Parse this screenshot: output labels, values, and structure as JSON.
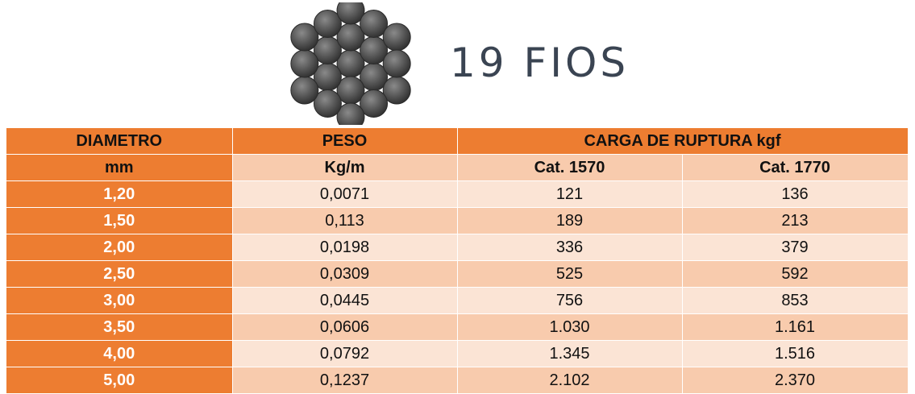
{
  "title": "19 FIOS",
  "icons": {
    "strand": "19-wire-strand-cross-section-icon"
  },
  "colors": {
    "accent": "#ed7d31",
    "row_dark": "#f8cbad",
    "row_light": "#fbe4d5",
    "title_text": "#3a4452",
    "wire": "#555555"
  },
  "table": {
    "header1": {
      "diametro": "DIAMETRO",
      "peso": "PESO",
      "carga": "CARGA DE RUPTURA  kgf"
    },
    "header2": {
      "mm": "mm",
      "kgm": "Kg/m",
      "cat1": "Cat. 1570",
      "cat2": "Cat. 1770"
    },
    "rows": [
      {
        "d": "1,20",
        "peso": "0,0071",
        "c1": "121",
        "c2": "136"
      },
      {
        "d": "1,50",
        "peso": "0,113",
        "c1": "189",
        "c2": "213"
      },
      {
        "d": "2,00",
        "peso": "0,0198",
        "c1": "336",
        "c2": "379"
      },
      {
        "d": "2,50",
        "peso": "0,0309",
        "c1": "525",
        "c2": "592"
      },
      {
        "d": "3,00",
        "peso": "0,0445",
        "c1": "756",
        "c2": "853"
      },
      {
        "d": "3,50",
        "peso": "0,0606",
        "c1": "1.030",
        "c2": "1.161"
      },
      {
        "d": "4,00",
        "peso": "0,0792",
        "c1": "1.345",
        "c2": "1.516"
      },
      {
        "d": "5,00",
        "peso": "0,1237",
        "c1": "2.102",
        "c2": "2.370"
      }
    ]
  }
}
